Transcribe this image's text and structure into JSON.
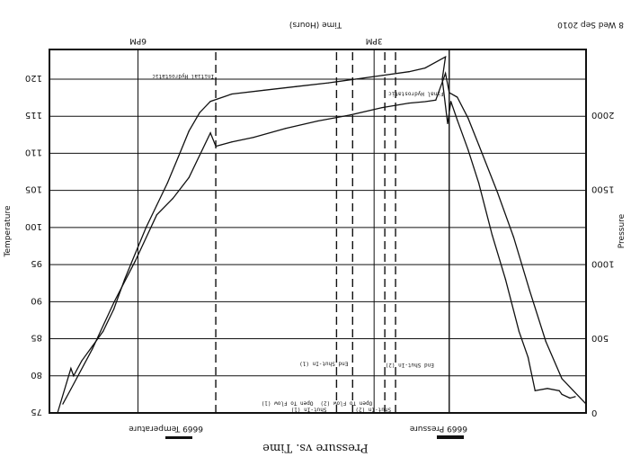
{
  "chart_data": {
    "type": "line",
    "orientation": "rotated-180",
    "title": "Pressure vs. Time",
    "header_left": "8 Wed Sep 2010",
    "xlabel": "Time (Hours)",
    "x_ticks": [
      "3PM",
      "6PM"
    ],
    "ylabel_temperature": "Temperature",
    "ylabel_pressure": "Pressure",
    "temperature_ticks": [
      75,
      80,
      85,
      90,
      95,
      100,
      105,
      110,
      115,
      120
    ],
    "temperature_range": [
      75,
      124
    ],
    "pressure_ticks": [
      0,
      500,
      1000,
      1500,
      2000
    ],
    "pressure_range": [
      0,
      2440
    ],
    "x_range": [
      0,
      1
    ],
    "grid": true,
    "legend": [
      {
        "name": "6669 Temperature",
        "color": "#111111"
      },
      {
        "name": "6669 Pressure",
        "color": "#111111"
      }
    ],
    "series": [
      {
        "name": "6669 Pressure",
        "axis": "pressure",
        "points": [
          [
            0.0,
            60
          ],
          [
            0.045,
            230
          ],
          [
            0.075,
            480
          ],
          [
            0.105,
            820
          ],
          [
            0.135,
            1180
          ],
          [
            0.165,
            1480
          ],
          [
            0.2,
            1800
          ],
          [
            0.22,
            1980
          ],
          [
            0.24,
            2120
          ],
          [
            0.255,
            2150
          ],
          [
            0.262,
            2280
          ],
          [
            0.28,
            2100
          ],
          [
            0.3,
            2090
          ],
          [
            0.33,
            2080
          ],
          [
            0.38,
            2050
          ],
          [
            0.44,
            2000
          ],
          [
            0.5,
            1960
          ],
          [
            0.56,
            1910
          ],
          [
            0.62,
            1850
          ],
          [
            0.66,
            1820
          ],
          [
            0.68,
            1800
          ],
          [
            0.69,
            1790
          ],
          [
            0.7,
            1880
          ],
          [
            0.74,
            1580
          ],
          [
            0.77,
            1440
          ],
          [
            0.8,
            1330
          ],
          [
            0.84,
            1020
          ],
          [
            0.88,
            740
          ],
          [
            0.92,
            430
          ],
          [
            0.96,
            160
          ],
          [
            0.975,
            60
          ]
        ]
      },
      {
        "name": "6669 Temperature",
        "axis": "temperature",
        "points": [
          [
            0.02,
            77.2
          ],
          [
            0.03,
            77.0
          ],
          [
            0.045,
            77.5
          ],
          [
            0.05,
            78.0
          ],
          [
            0.072,
            78.3
          ],
          [
            0.095,
            78.0
          ],
          [
            0.108,
            82.5
          ],
          [
            0.125,
            86.0
          ],
          [
            0.15,
            93.0
          ],
          [
            0.175,
            99.0
          ],
          [
            0.2,
            106.0
          ],
          [
            0.22,
            110.5
          ],
          [
            0.24,
            114.5
          ],
          [
            0.252,
            117.0
          ],
          [
            0.258,
            114.0
          ],
          [
            0.268,
            120.0
          ],
          [
            0.262,
            123.0
          ],
          [
            0.3,
            121.5
          ],
          [
            0.33,
            121.0
          ],
          [
            0.38,
            120.5
          ],
          [
            0.43,
            120.0
          ],
          [
            0.48,
            119.5
          ],
          [
            0.54,
            119.0
          ],
          [
            0.6,
            118.5
          ],
          [
            0.66,
            118.0
          ],
          [
            0.7,
            117.0
          ],
          [
            0.72,
            115.5
          ],
          [
            0.74,
            113.0
          ],
          [
            0.76,
            109.5
          ],
          [
            0.78,
            106.0
          ],
          [
            0.8,
            103.0
          ],
          [
            0.82,
            100.0
          ],
          [
            0.84,
            96.5
          ],
          [
            0.86,
            93.0
          ],
          [
            0.88,
            89.0
          ],
          [
            0.9,
            86.0
          ],
          [
            0.92,
            84.0
          ],
          [
            0.94,
            82.0
          ],
          [
            0.955,
            80.0
          ],
          [
            0.96,
            81.0
          ],
          [
            0.985,
            75.0
          ]
        ]
      }
    ],
    "event_markers": [
      {
        "x": 0.255,
        "style": "solid",
        "label": "Final Hydrostatic"
      },
      {
        "x": 0.355,
        "style": "dashed",
        "label": "Shut-in (2)"
      },
      {
        "x": 0.375,
        "style": "dashed",
        "label": "Open To Flow (2)"
      },
      {
        "x": 0.435,
        "style": "dashed",
        "label": "Shut-in (1)"
      },
      {
        "x": 0.465,
        "style": "dashed",
        "label": "Open To Flow (1)"
      },
      {
        "x": 0.69,
        "style": "dashed",
        "label": "Initial Hydrostatic"
      }
    ],
    "annotations": [
      {
        "text": "Final Hydrostatic",
        "x": 0.262,
        "pressure": 2140
      },
      {
        "text": "End Shut-In (2)",
        "x": 0.28,
        "pressure": 320
      },
      {
        "text": "Shut-In (2)",
        "x": 0.36,
        "pressure": 20
      },
      {
        "text": "Open To Flow (2)",
        "x": 0.395,
        "pressure": 65
      },
      {
        "text": "End Shut-In (1)",
        "x": 0.44,
        "pressure": 330
      },
      {
        "text": "Shut-In (1)",
        "x": 0.48,
        "pressure": 20
      },
      {
        "text": "Open To Flow (1)",
        "x": 0.505,
        "pressure": 65
      },
      {
        "text": "Initial Hydrostatic",
        "x": 0.69,
        "pressure": 2260
      }
    ]
  }
}
